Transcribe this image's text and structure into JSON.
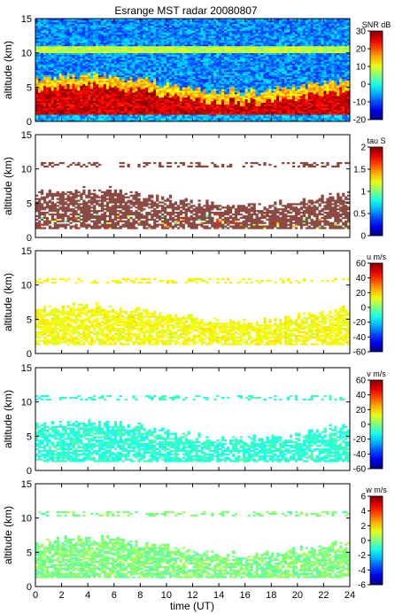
{
  "chart_data": [
    {
      "type": "heatmap",
      "title": "Esrange MST radar 20080807",
      "ylabel": "altitude (km)",
      "ylim": [
        0,
        15
      ],
      "xlim": [
        0,
        24
      ],
      "yticks": [
        "0",
        "5",
        "10",
        "15"
      ],
      "colorbar": {
        "label": "SNR dB",
        "range": [
          -20,
          30
        ],
        "ticks": [
          "30",
          "20",
          "10",
          "0",
          "-10",
          "-20"
        ],
        "colormap": "jet"
      },
      "description_values": {
        "strong_layer_km": [
          1,
          5
        ],
        "peak_snr_db": 30,
        "background_snr_db": -10
      }
    },
    {
      "type": "heatmap",
      "ylabel": "altitude (km)",
      "ylim": [
        0,
        15
      ],
      "xlim": [
        0,
        24
      ],
      "yticks": [
        "0",
        "5",
        "10",
        "15"
      ],
      "colorbar": {
        "label": "tau S",
        "range": [
          0,
          2
        ],
        "ticks": [
          "2",
          "1.5",
          "1",
          "0.5",
          "0"
        ],
        "colormap": "jet"
      },
      "description_values": {
        "data_altitude_km": [
          1.5,
          7.0
        ],
        "thin_layer_km": 10.5,
        "dominant_tau_s": 2.0
      }
    },
    {
      "type": "heatmap",
      "ylabel": "altitude (km)",
      "ylim": [
        0,
        15
      ],
      "xlim": [
        0,
        24
      ],
      "yticks": [
        "0",
        "5",
        "10",
        "15"
      ],
      "colorbar": {
        "label": "u m/s",
        "range": [
          -60,
          60
        ],
        "ticks": [
          "60",
          "40",
          "20",
          "0",
          "-20",
          "-40",
          "-60"
        ],
        "colormap": "jet"
      },
      "description_values": {
        "data_altitude_km": [
          1.5,
          7.0
        ],
        "thin_layer_km": 10.5,
        "typical_u_ms": 15
      }
    },
    {
      "type": "heatmap",
      "ylabel": "altitude (km)",
      "ylim": [
        0,
        15
      ],
      "xlim": [
        0,
        24
      ],
      "yticks": [
        "0",
        "5",
        "10",
        "15"
      ],
      "colorbar": {
        "label": "v m/s",
        "range": [
          -60,
          60
        ],
        "ticks": [
          "60",
          "40",
          "20",
          "0",
          "-20",
          "-40",
          "-60"
        ],
        "colormap": "jet"
      },
      "description_values": {
        "data_altitude_km": [
          1.5,
          7.0
        ],
        "thin_layer_km": 10.5,
        "typical_v_ms": -10
      }
    },
    {
      "type": "heatmap",
      "ylabel": "altitude (km)",
      "xlabel": "time (UT)",
      "ylim": [
        0,
        15
      ],
      "xlim": [
        0,
        24
      ],
      "yticks": [
        "0",
        "5",
        "10",
        "15"
      ],
      "xticks": [
        "0",
        "2",
        "4",
        "6",
        "8",
        "10",
        "12",
        "14",
        "16",
        "18",
        "20",
        "22",
        "24"
      ],
      "colorbar": {
        "label": "w m/s",
        "range": [
          -6,
          6
        ],
        "ticks": [
          "6",
          "4",
          "2",
          "0",
          "-2",
          "-4",
          "-6"
        ],
        "colormap": "jet"
      },
      "description_values": {
        "data_altitude_km": [
          1.5,
          7.0
        ],
        "thin_layer_km": 10.5,
        "typical_w_ms": 0
      }
    }
  ]
}
